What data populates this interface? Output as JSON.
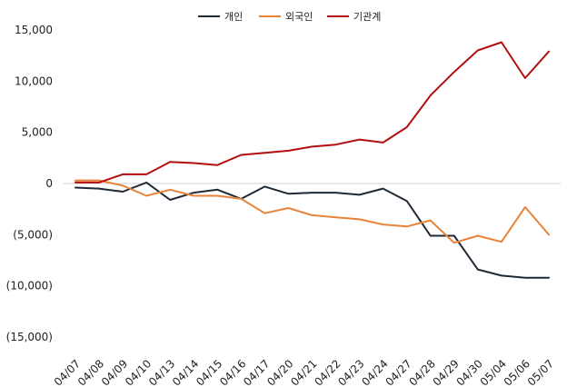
{
  "chart_data": {
    "type": "line",
    "categories": [
      "04/07",
      "04/08",
      "04/09",
      "04/10",
      "04/13",
      "04/14",
      "04/15",
      "04/16",
      "04/17",
      "04/20",
      "04/21",
      "04/22",
      "04/23",
      "04/24",
      "04/27",
      "04/28",
      "04/29",
      "04/30",
      "05/04",
      "05/06",
      "05/07"
    ],
    "y_ticks": [
      "15,000",
      "10,000",
      "5,000",
      "0",
      "(5,000)",
      "(10,000)",
      "(15,000)"
    ],
    "ylim": [
      -15000,
      15000
    ],
    "grid": "zero-line only",
    "legend": "top-center",
    "series": [
      {
        "name": "개인",
        "color": "#1f2a36",
        "values": [
          -400,
          -500,
          -800,
          100,
          -1600,
          -900,
          -600,
          -1500,
          -300,
          -1000,
          -900,
          -900,
          -1100,
          -500,
          -1700,
          -5100,
          -5100,
          -8400,
          -9000,
          -9200,
          -9200
        ]
      },
      {
        "name": "외국인",
        "color": "#e8833a",
        "values": [
          300,
          300,
          -200,
          -1200,
          -600,
          -1200,
          -1200,
          -1500,
          -2900,
          -2400,
          -3100,
          -3300,
          -3500,
          -4000,
          -4200,
          -3600,
          -5800,
          -5100,
          -5700,
          -2300,
          -5000
        ]
      },
      {
        "name": "기관계",
        "color": "#b40f0f",
        "values": [
          100,
          100,
          900,
          900,
          2100,
          2000,
          1800,
          2800,
          3000,
          3200,
          3600,
          3800,
          4300,
          4000,
          5500,
          8600,
          10900,
          13000,
          13800,
          10300,
          12900
        ]
      }
    ]
  }
}
